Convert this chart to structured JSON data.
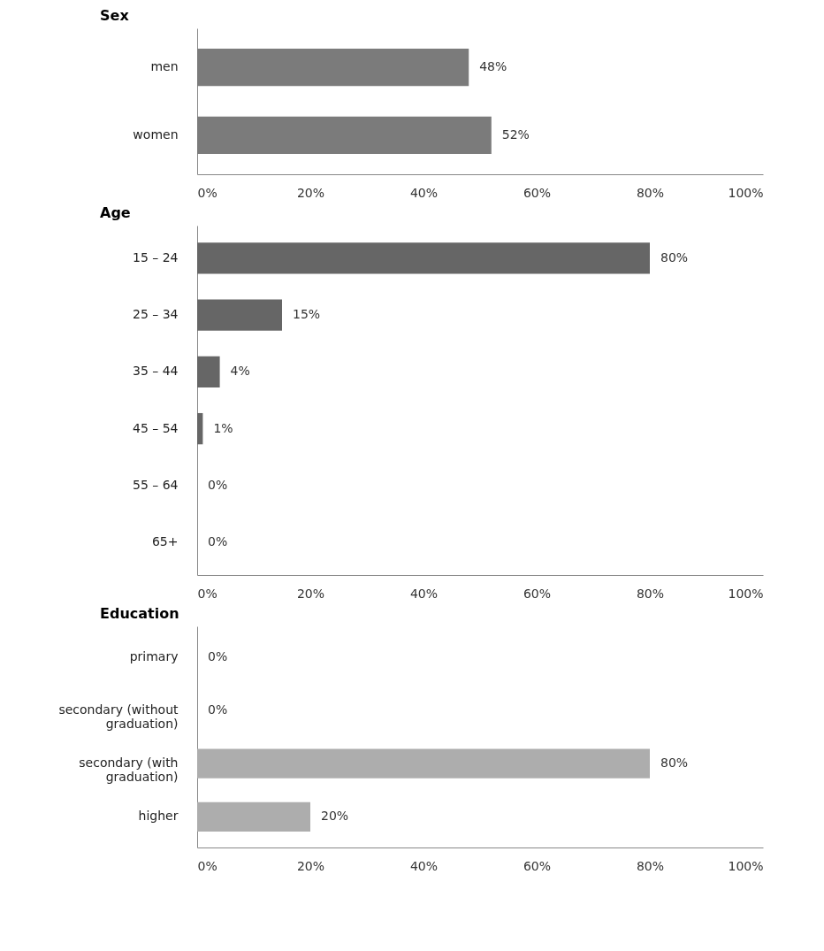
{
  "chart_data": [
    {
      "type": "bar",
      "orientation": "horizontal",
      "title": "Sex",
      "categories": [
        "men",
        "women"
      ],
      "values": [
        48,
        52
      ],
      "value_labels": [
        "48%",
        "52%"
      ],
      "color": "#7b7b7b",
      "grid": false,
      "xlim": [
        0,
        100
      ],
      "xticks": [
        {
          "value": 0,
          "label": "0%"
        },
        {
          "value": 20,
          "label": "20%"
        },
        {
          "value": 40,
          "label": "40%"
        },
        {
          "value": 60,
          "label": "60%"
        },
        {
          "value": 80,
          "label": "80%"
        },
        {
          "value": 100,
          "label": "100%"
        }
      ]
    },
    {
      "type": "bar",
      "orientation": "horizontal",
      "title": "Age",
      "categories": [
        "15 – 24",
        "25 – 34",
        "35 – 44",
        "45 – 54",
        "55 – 64",
        "65+"
      ],
      "values": [
        80,
        15,
        4,
        1,
        0,
        0
      ],
      "value_labels": [
        "80%",
        "15%",
        "4%",
        "1%",
        "0%",
        "0%"
      ],
      "color": "#666666",
      "grid": false,
      "xlim": [
        0,
        100
      ],
      "xticks": [
        {
          "value": 0,
          "label": "0%"
        },
        {
          "value": 20,
          "label": "20%"
        },
        {
          "value": 40,
          "label": "40%"
        },
        {
          "value": 60,
          "label": "60%"
        },
        {
          "value": 80,
          "label": "80%"
        },
        {
          "value": 100,
          "label": "100%"
        }
      ]
    },
    {
      "type": "bar",
      "orientation": "horizontal",
      "title": "Education",
      "categories": [
        "primary",
        "secondary (without\ngraduation)",
        "secondary (with\ngraduation)",
        "higher"
      ],
      "values": [
        0,
        0,
        80,
        20
      ],
      "value_labels": [
        "0%",
        "0%",
        "80%",
        "20%"
      ],
      "color": "#adadad",
      "grid": false,
      "xlim": [
        0,
        100
      ],
      "xticks": [
        {
          "value": 0,
          "label": "0%"
        },
        {
          "value": 20,
          "label": "20%"
        },
        {
          "value": 40,
          "label": "40%"
        },
        {
          "value": 60,
          "label": "60%"
        },
        {
          "value": 80,
          "label": "80%"
        },
        {
          "value": 100,
          "label": "100%"
        }
      ]
    }
  ]
}
